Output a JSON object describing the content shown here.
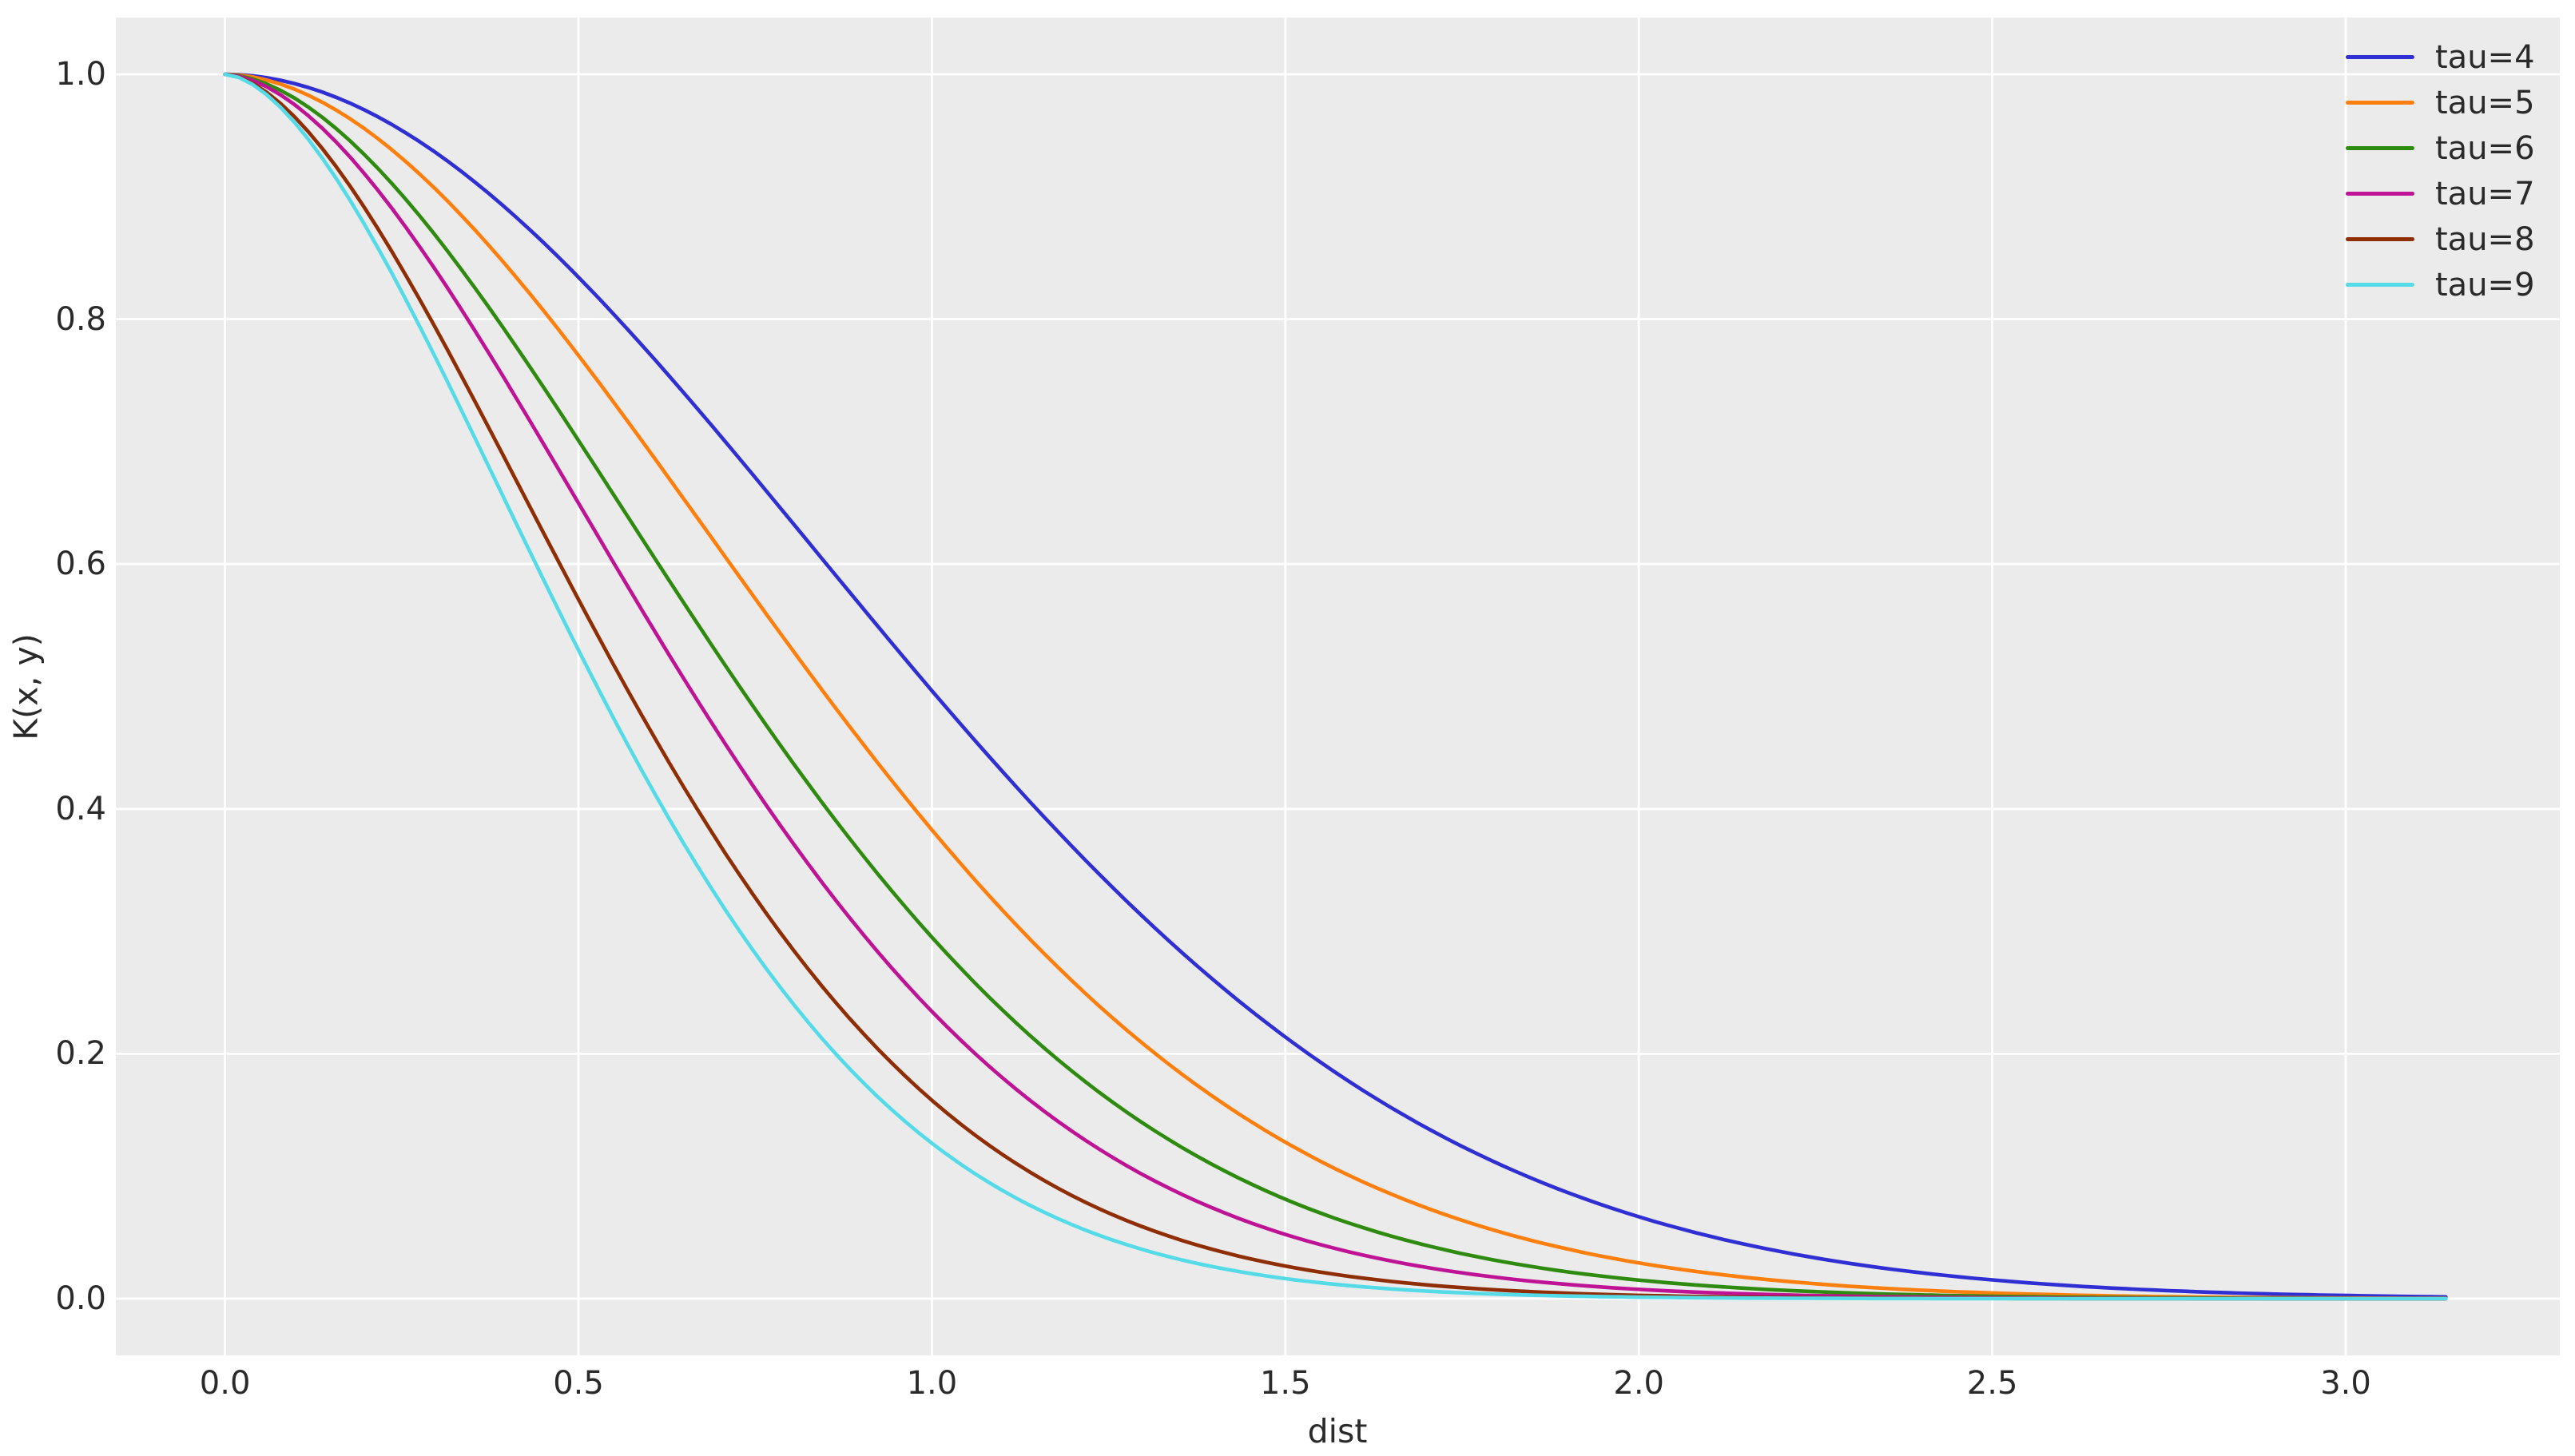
{
  "figure": {
    "background": "#ffffff",
    "plot_background": "#ebebeb",
    "grid_color": "#ffffff",
    "text_color": "#2a2a2a"
  },
  "chart_data": {
    "type": "line",
    "title": "",
    "xlabel": "dist",
    "ylabel": "K(x, y)",
    "grid": true,
    "legend_position": "upper right",
    "xlim": [
      -0.154,
      3.303
    ],
    "ylim": [
      -0.046,
      1.046
    ],
    "x_data_range": [
      0,
      3.14159
    ],
    "x_tick_values": [
      0.0,
      0.5,
      1.0,
      1.5,
      2.0,
      2.5,
      3.0
    ],
    "x_tick_labels": [
      "0.0",
      "0.5",
      "1.0",
      "1.5",
      "2.0",
      "2.5",
      "3.0"
    ],
    "y_tick_values": [
      0.0,
      0.2,
      0.4,
      0.6,
      0.8,
      1.0
    ],
    "y_tick_labels": [
      "0.0",
      "0.2",
      "0.4",
      "0.6",
      "0.8",
      "1.0"
    ],
    "x_sample": [
      0.0,
      0.25,
      0.5,
      0.75,
      1.0,
      1.25,
      1.5,
      1.75,
      2.0,
      2.25,
      2.5,
      2.75,
      3.0,
      3.14
    ],
    "series": [
      {
        "label": "tau=4",
        "tau": 4,
        "color": "#2f2fd3",
        "model": {
          "type": "exp(-a*d^p)",
          "a": 0.7,
          "p": 1.95
        },
        "y": [
          1.0,
          0.954,
          0.834,
          0.671,
          0.497,
          0.339,
          0.214,
          0.124,
          0.067,
          0.033,
          0.015,
          0.007,
          0.003,
          0.002
        ]
      },
      {
        "label": "tau=5",
        "tau": 5,
        "color": "#ff7f0e",
        "model": {
          "type": "exp(-a*d^p)",
          "a": 0.96,
          "p": 1.88
        },
        "y": [
          1.0,
          0.932,
          0.77,
          0.572,
          0.383,
          0.232,
          0.128,
          0.064,
          0.029,
          0.012,
          0.005,
          0.002,
          0.001,
          0.0
        ]
      },
      {
        "label": "tau=6",
        "tau": 6,
        "color": "#2e8b10",
        "model": {
          "type": "exp(-a*d^p)",
          "a": 1.22,
          "p": 1.78
        },
        "y": [
          1.0,
          0.902,
          0.701,
          0.481,
          0.295,
          0.163,
          0.081,
          0.037,
          0.015,
          0.006,
          0.002,
          0.001,
          0.0,
          0.0
        ]
      },
      {
        "label": "tau=7",
        "tau": 7,
        "color": "#bf1396",
        "model": {
          "type": "exp(-a*d^p)",
          "a": 1.45,
          "p": 1.75
        },
        "y": [
          1.0,
          0.88,
          0.65,
          0.416,
          0.235,
          0.117,
          0.052,
          0.021,
          0.008,
          0.003,
          0.001,
          0.0,
          0.0,
          0.0
        ]
      },
      {
        "label": "tau=8",
        "tau": 8,
        "color": "#8f2d04",
        "model": {
          "type": "exp(-a*d^p)",
          "a": 1.82,
          "p": 1.7
        },
        "y": [
          1.0,
          0.842,
          0.571,
          0.328,
          0.162,
          0.07,
          0.027,
          0.009,
          0.003,
          0.001,
          0.0,
          0.0,
          0.0,
          0.0
        ]
      },
      {
        "label": "tau=9",
        "tau": 9,
        "color": "#55dbe8",
        "model": {
          "type": "exp(-a*d^p)",
          "a": 2.064,
          "p": 1.7
        },
        "y": [
          1.0,
          0.822,
          0.53,
          0.282,
          0.127,
          0.049,
          0.016,
          0.005,
          0.001,
          0.0,
          0.0,
          0.0,
          0.0,
          0.0
        ]
      }
    ]
  }
}
